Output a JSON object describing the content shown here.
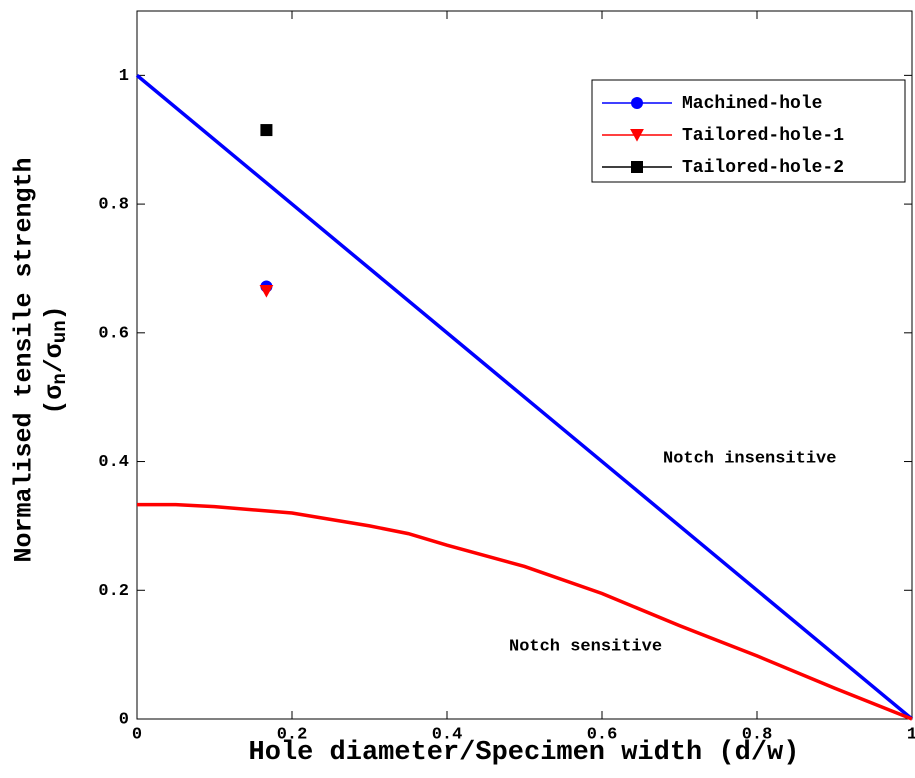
{
  "chart_data": {
    "type": "scatter",
    "xlabel": "Hole diameter/Specimen width (d/w)",
    "ylabel": "Normalised tensile strength",
    "ylabel_units": [
      "(σ",
      "n",
      "/σ",
      "un",
      ")"
    ],
    "xlim": [
      0,
      1
    ],
    "ylim": [
      0,
      1.1
    ],
    "xticks": [
      0,
      0.2,
      0.4,
      0.6,
      0.8,
      1
    ],
    "yticks": [
      0,
      0.2,
      0.4,
      0.6,
      0.8,
      1
    ],
    "grid": false,
    "legend": "upper right",
    "series": [
      {
        "name": "Machined-hole",
        "color": "#0000ff",
        "marker": "circle",
        "x": [
          0.167
        ],
        "values": [
          0.672
        ]
      },
      {
        "name": "Tailored-hole-1",
        "color": "#ff0000",
        "marker": "triangle-down",
        "x": [
          0.167
        ],
        "values": [
          0.665
        ]
      },
      {
        "name": "Tailored-hole-2",
        "color": "#000000",
        "marker": "square",
        "x": [
          0.167
        ],
        "values": [
          0.915
        ]
      }
    ],
    "lines": [
      {
        "color": "#0000ff",
        "x": [
          0,
          0.45,
          0.5,
          1
        ],
        "values": [
          1,
          0.55,
          0.5,
          0
        ]
      },
      {
        "color": "#ff0000",
        "x": [
          0,
          0.05,
          0.1,
          0.2,
          0.3,
          0.35,
          0.4,
          0.5,
          0.6,
          0.7,
          0.8,
          0.9,
          1
        ],
        "values": [
          0.333,
          0.333,
          0.33,
          0.32,
          0.3,
          0.288,
          0.27,
          0.237,
          0.195,
          0.145,
          0.098,
          0.048,
          0
        ]
      }
    ],
    "annotations": [
      "Notch insensitive",
      "Notch sensitive"
    ]
  }
}
